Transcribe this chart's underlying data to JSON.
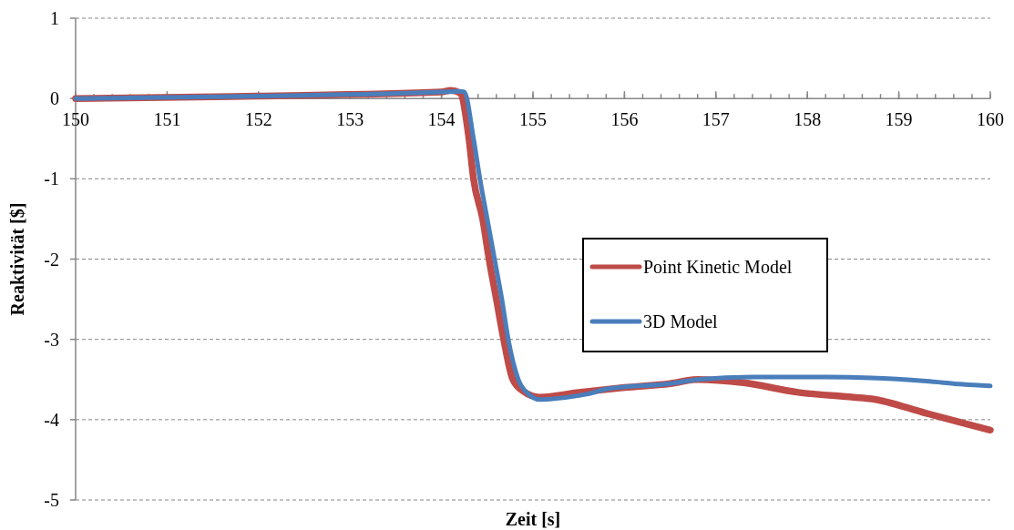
{
  "chart_data": {
    "type": "line",
    "xlabel": "Zeit [s]",
    "ylabel": "Reaktivität [$]",
    "xlim": [
      150,
      160
    ],
    "ylim": [
      -5,
      1
    ],
    "xticks": [
      150,
      151,
      152,
      153,
      154,
      155,
      156,
      157,
      158,
      159,
      160
    ],
    "yticks": [
      -5,
      -4,
      -3,
      -2,
      -1,
      0,
      1
    ],
    "grid": "y",
    "legend": "right",
    "line_style": "solid",
    "marker": "none",
    "series": [
      {
        "name": "Point Kinetic Model",
        "color": "#be4b48",
        "x": [
          150,
          152,
          154,
          154.1,
          154.2,
          154.3,
          154.35,
          154.45,
          154.52,
          154.6,
          154.68,
          154.78,
          154.9,
          155.07,
          155.5,
          156,
          156.5,
          156.8,
          157.3,
          157.9,
          158.5,
          158.7,
          159.3,
          160
        ],
        "values": [
          0,
          0.03,
          0.08,
          0.1,
          0.07,
          -0.5,
          -1,
          -1.5,
          -2,
          -2.5,
          -3,
          -3.5,
          -3.65,
          -3.72,
          -3.66,
          -3.6,
          -3.55,
          -3.5,
          -3.54,
          -3.66,
          -3.72,
          -3.74,
          -3.92,
          -4.13
        ]
      },
      {
        "name": "3D Model",
        "color": "#4a7ebb",
        "x": [
          150,
          152,
          154,
          154.2,
          154.25,
          154.35,
          154.42,
          154.5,
          154.58,
          154.66,
          154.73,
          154.84,
          154.95,
          155.08,
          155.5,
          155.6,
          155.8,
          156.5,
          156.8,
          157.4,
          158.2,
          158.7,
          159.3,
          159.7,
          160
        ],
        "values": [
          0,
          0.03,
          0.08,
          0.09,
          0.08,
          -0.5,
          -1,
          -1.5,
          -2,
          -2.5,
          -3,
          -3.5,
          -3.68,
          -3.75,
          -3.7,
          -3.68,
          -3.62,
          -3.55,
          -3.5,
          -3.47,
          -3.47,
          -3.48,
          -3.52,
          -3.56,
          -3.58
        ]
      }
    ]
  }
}
